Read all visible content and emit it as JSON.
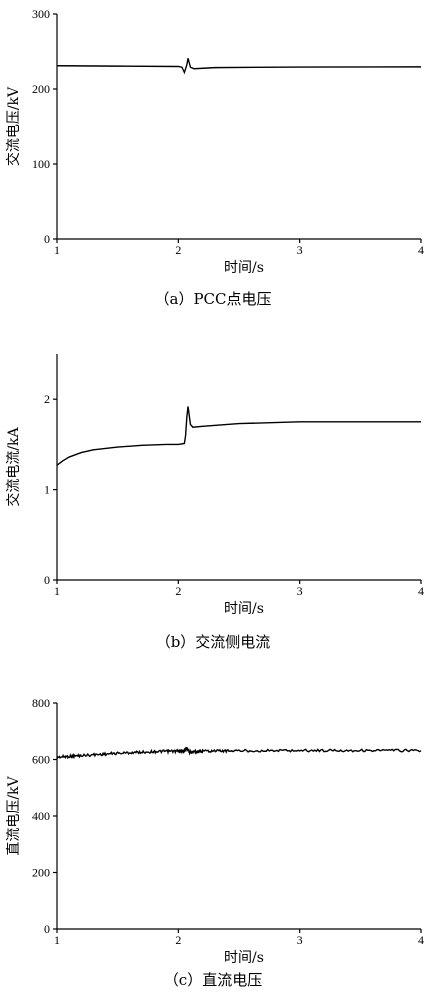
{
  "chart_data": [
    {
      "type": "line",
      "caption": "（a）PCC点电压",
      "xlabel": "时间/s",
      "ylabel": "交流电压/kV",
      "xlim": [
        1,
        4
      ],
      "ylim": [
        0,
        300
      ],
      "xticks": [
        1,
        2,
        3,
        4
      ],
      "yticks": [
        0,
        100,
        200,
        300
      ],
      "grid": false,
      "series": [
        {
          "x": [
            1,
            1.5,
            2.0,
            2.03,
            2.05,
            2.07,
            2.08,
            2.1,
            2.13,
            2.3,
            3,
            4
          ],
          "y": [
            231,
            230.5,
            230,
            229,
            222,
            232,
            241,
            229,
            227,
            228.5,
            229.3,
            229.5
          ]
        }
      ]
    },
    {
      "type": "line",
      "caption": "（b）交流侧电流",
      "xlabel": "时间/s",
      "ylabel": "交流电流/kA",
      "xlim": [
        1,
        4
      ],
      "ylim": [
        0,
        2.5
      ],
      "xticks": [
        1,
        2,
        3,
        4
      ],
      "yticks": [
        0,
        1,
        2
      ],
      "grid": false,
      "series": [
        {
          "x": [
            1,
            1.05,
            1.1,
            1.2,
            1.3,
            1.5,
            1.7,
            1.9,
            2.0,
            2.05,
            2.06,
            2.07,
            2.08,
            2.1,
            2.12,
            2.2,
            2.5,
            3,
            3.5,
            4
          ],
          "y": [
            1.27,
            1.32,
            1.36,
            1.41,
            1.44,
            1.47,
            1.49,
            1.5,
            1.5,
            1.51,
            1.6,
            1.8,
            1.92,
            1.72,
            1.69,
            1.7,
            1.73,
            1.75,
            1.75,
            1.75
          ]
        }
      ]
    },
    {
      "type": "line",
      "caption": "（c）直流电压",
      "xlabel": "时间/s",
      "ylabel": "直流电压/kV",
      "xlim": [
        1,
        4
      ],
      "ylim": [
        0,
        800
      ],
      "xticks": [
        1,
        2,
        3,
        4
      ],
      "yticks": [
        0,
        200,
        400,
        600,
        800
      ],
      "grid": false,
      "series": [
        {
          "x": [
            1,
            1.2,
            1.5,
            1.8,
            2.0,
            2.05,
            2.07,
            2.09,
            2.2,
            2.5,
            3,
            3.5,
            4
          ],
          "y": [
            608,
            614,
            622,
            628,
            630,
            630,
            640,
            626,
            630,
            631,
            632,
            632,
            632
          ]
        }
      ]
    }
  ]
}
